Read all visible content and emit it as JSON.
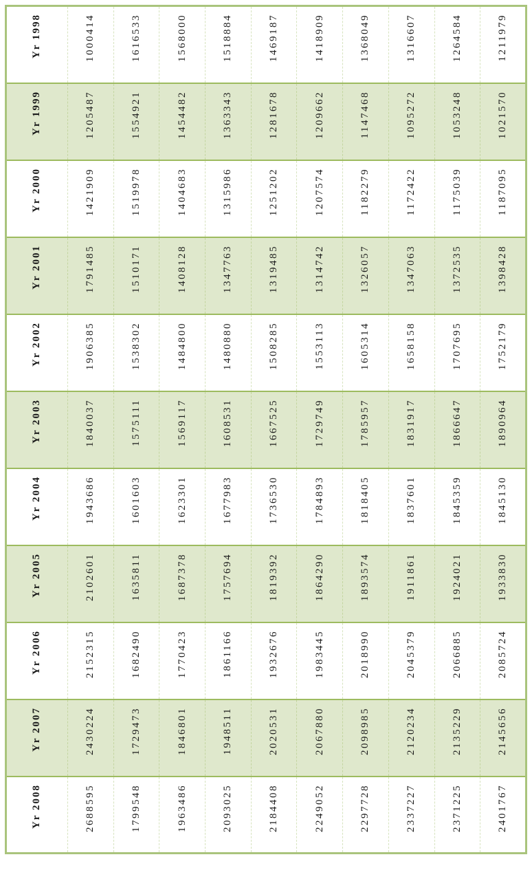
{
  "page": {
    "background_color": "#ffffff"
  },
  "colors": {
    "outer_border": "#a9c47c",
    "row_separator": "#9dbb5f",
    "band_fill": "#dfe8cc",
    "text": "#1a1a1a"
  },
  "table": {
    "rows": [
      {
        "header": "Yr 1998",
        "values": [
          "1000414",
          "1616533",
          "1568000",
          "1518884",
          "1469187",
          "1418909",
          "1368049",
          "1316607",
          "1264584",
          "1211979"
        ]
      },
      {
        "header": "Yr 1999",
        "values": [
          "1205487",
          "1554921",
          "1454482",
          "1363343",
          "1281678",
          "1209662",
          "1147468",
          "1095272",
          "1053248",
          "1021570"
        ]
      },
      {
        "header": "Yr 2000",
        "values": [
          "1421909",
          "1519978",
          "1404683",
          "1315986",
          "1251202",
          "1207574",
          "1182279",
          "1172422",
          "1175039",
          "1187095"
        ]
      },
      {
        "header": "Yr 2001",
        "values": [
          "1791485",
          "1510171",
          "1408128",
          "1347763",
          "1319485",
          "1314742",
          "1326057",
          "1347063",
          "1372535",
          "1398428"
        ]
      },
      {
        "header": "Yr 2002",
        "values": [
          "1906385",
          "1538302",
          "1484800",
          "1480880",
          "1508285",
          "1553113",
          "1605314",
          "1658158",
          "1707695",
          "1752179"
        ]
      },
      {
        "header": "Yr 2003",
        "values": [
          "1840037",
          "1575111",
          "1569117",
          "1608531",
          "1667525",
          "1729749",
          "1785957",
          "1831917",
          "1866647",
          "1890964"
        ]
      },
      {
        "header": "Yr 2004",
        "values": [
          "1943686",
          "1601603",
          "1623301",
          "1677983",
          "1736530",
          "1784893",
          "1818405",
          "1837601",
          "1845359",
          "1845130"
        ]
      },
      {
        "header": "Yr 2005",
        "values": [
          "2102601",
          "1635811",
          "1687378",
          "1757694",
          "1819392",
          "1864290",
          "1893574",
          "1911861",
          "1924021",
          "1933830"
        ]
      },
      {
        "header": "Yr 2006",
        "values": [
          "2152315",
          "1682490",
          "1770423",
          "1861166",
          "1932676",
          "1983445",
          "2018990",
          "2045379",
          "2066885",
          "2085724"
        ]
      },
      {
        "header": "Yr 2007",
        "values": [
          "2430224",
          "1729473",
          "1846801",
          "1948511",
          "2020531",
          "2067880",
          "2098985",
          "2120234",
          "2135229",
          "2145656"
        ]
      },
      {
        "header": "Yr 2008",
        "values": [
          "2688595",
          "1799548",
          "1963486",
          "2093025",
          "2184408",
          "2249052",
          "2297728",
          "2337227",
          "2371225",
          "2401767"
        ]
      }
    ]
  },
  "chart_data": {
    "type": "table",
    "row_labels": [
      "Yr 1998",
      "Yr 1999",
      "Yr 2000",
      "Yr 2001",
      "Yr 2002",
      "Yr 2003",
      "Yr 2004",
      "Yr 2005",
      "Yr 2006",
      "Yr 2007",
      "Yr 2008"
    ],
    "rows": [
      [
        1000414,
        1616533,
        1568000,
        1518884,
        1469187,
        1418909,
        1368049,
        1316607,
        1264584,
        1211979
      ],
      [
        1205487,
        1554921,
        1454482,
        1363343,
        1281678,
        1209662,
        1147468,
        1095272,
        1053248,
        1021570
      ],
      [
        1421909,
        1519978,
        1404683,
        1315986,
        1251202,
        1207574,
        1182279,
        1172422,
        1175039,
        1187095
      ],
      [
        1791485,
        1510171,
        1408128,
        1347763,
        1319485,
        1314742,
        1326057,
        1347063,
        1372535,
        1398428
      ],
      [
        1906385,
        1538302,
        1484800,
        1480880,
        1508285,
        1553113,
        1605314,
        1658158,
        1707695,
        1752179
      ],
      [
        1840037,
        1575111,
        1569117,
        1608531,
        1667525,
        1729749,
        1785957,
        1831917,
        1866647,
        1890964
      ],
      [
        1943686,
        1601603,
        1623301,
        1677983,
        1736530,
        1784893,
        1818405,
        1837601,
        1845359,
        1845130
      ],
      [
        2102601,
        1635811,
        1687378,
        1757694,
        1819392,
        1864290,
        1893574,
        1911861,
        1924021,
        1933830
      ],
      [
        2152315,
        1682490,
        1770423,
        1861166,
        1932676,
        1983445,
        2018990,
        2045379,
        2066885,
        2085724
      ],
      [
        2430224,
        1729473,
        1846801,
        1948511,
        2020531,
        2067880,
        2098985,
        2120234,
        2135229,
        2145656
      ],
      [
        2688595,
        1799548,
        1963486,
        2093025,
        2184408,
        2249052,
        2297728,
        2337227,
        2371225,
        2401767
      ]
    ],
    "notes_layout": "rotated 90deg CCW; banded rows; no axes"
  }
}
